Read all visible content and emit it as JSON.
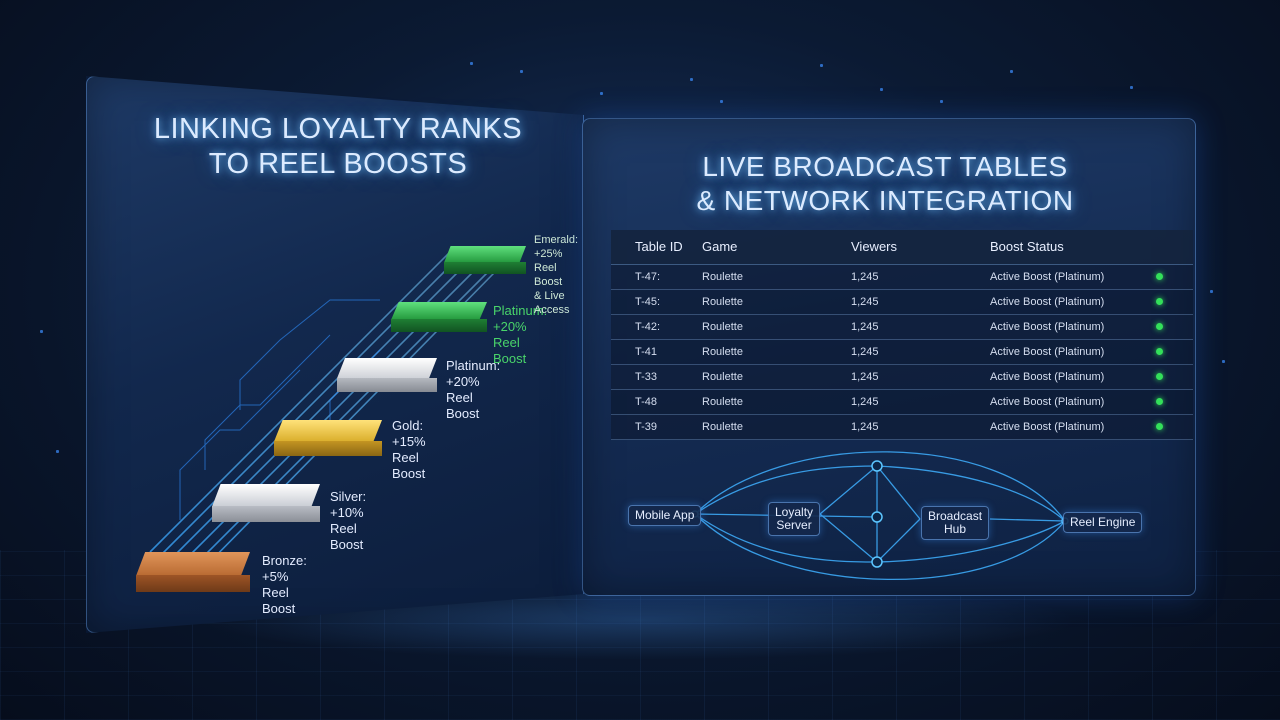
{
  "left_panel": {
    "title": "Linking Loyalty Ranks\nto Reel Boosts",
    "tiers": [
      {
        "name": "bronze",
        "label": "Bronze: +5% Reel Boost",
        "color": "#c8753a"
      },
      {
        "name": "silver",
        "label": "Silver: +10% Reel Boost",
        "color": "#cfd3da"
      },
      {
        "name": "gold",
        "label": "Gold:\n+15% Reel Boost",
        "color": "#e9c13c",
        "accent": "#f2d15a"
      },
      {
        "name": "platinum-silver",
        "label": "Platinum:\n+20% Reel Boost",
        "color": "#d6d9de"
      },
      {
        "name": "platinum-green",
        "label": "Platinum:\n+20% Reel Boost",
        "color": "#2fae4a",
        "accent": "#49d46a"
      },
      {
        "name": "emerald",
        "label": "Emerald:\n+25% Reel Boost\n& Live Access",
        "color": "#2c9f45",
        "accent": "#49d46a"
      }
    ]
  },
  "right_panel": {
    "title": "Live Broadcast Tables\n& Network Integration",
    "table": {
      "headers": [
        "Table ID",
        "Game",
        "Viewers",
        "Boost Status"
      ],
      "rows": [
        {
          "id": "T-47:",
          "game": "Roulette",
          "viewers": "1,245",
          "status": "Active Boost (Platinum)"
        },
        {
          "id": "T-45:",
          "game": "Roulette",
          "viewers": "1,245",
          "status": "Active Boost (Platinum)"
        },
        {
          "id": "T-42:",
          "game": "Roulette",
          "viewers": "1,245",
          "status": "Active Boost (Platinum)"
        },
        {
          "id": "T-41",
          "game": "Roulette",
          "viewers": "1,245",
          "status": "Active Boost (Platinum)"
        },
        {
          "id": "T-33",
          "game": "Roulette",
          "viewers": "1,245",
          "status": "Active Boost (Platinum)"
        },
        {
          "id": "T-48",
          "game": "Roulette",
          "viewers": "1,245",
          "status": "Active Boost (Platinum)"
        },
        {
          "id": "T-39",
          "game": "Roulette",
          "viewers": "1,245",
          "status": "Active Boost (Platinum)"
        }
      ],
      "status_color": "#33e05a"
    },
    "network": {
      "nodes": {
        "mobile_app": "Mobile App",
        "loyalty_server": "Loyalty\nServer",
        "broadcast_hub": "Broadcast\nHub",
        "reel_engine": "Reel Engine"
      }
    }
  }
}
